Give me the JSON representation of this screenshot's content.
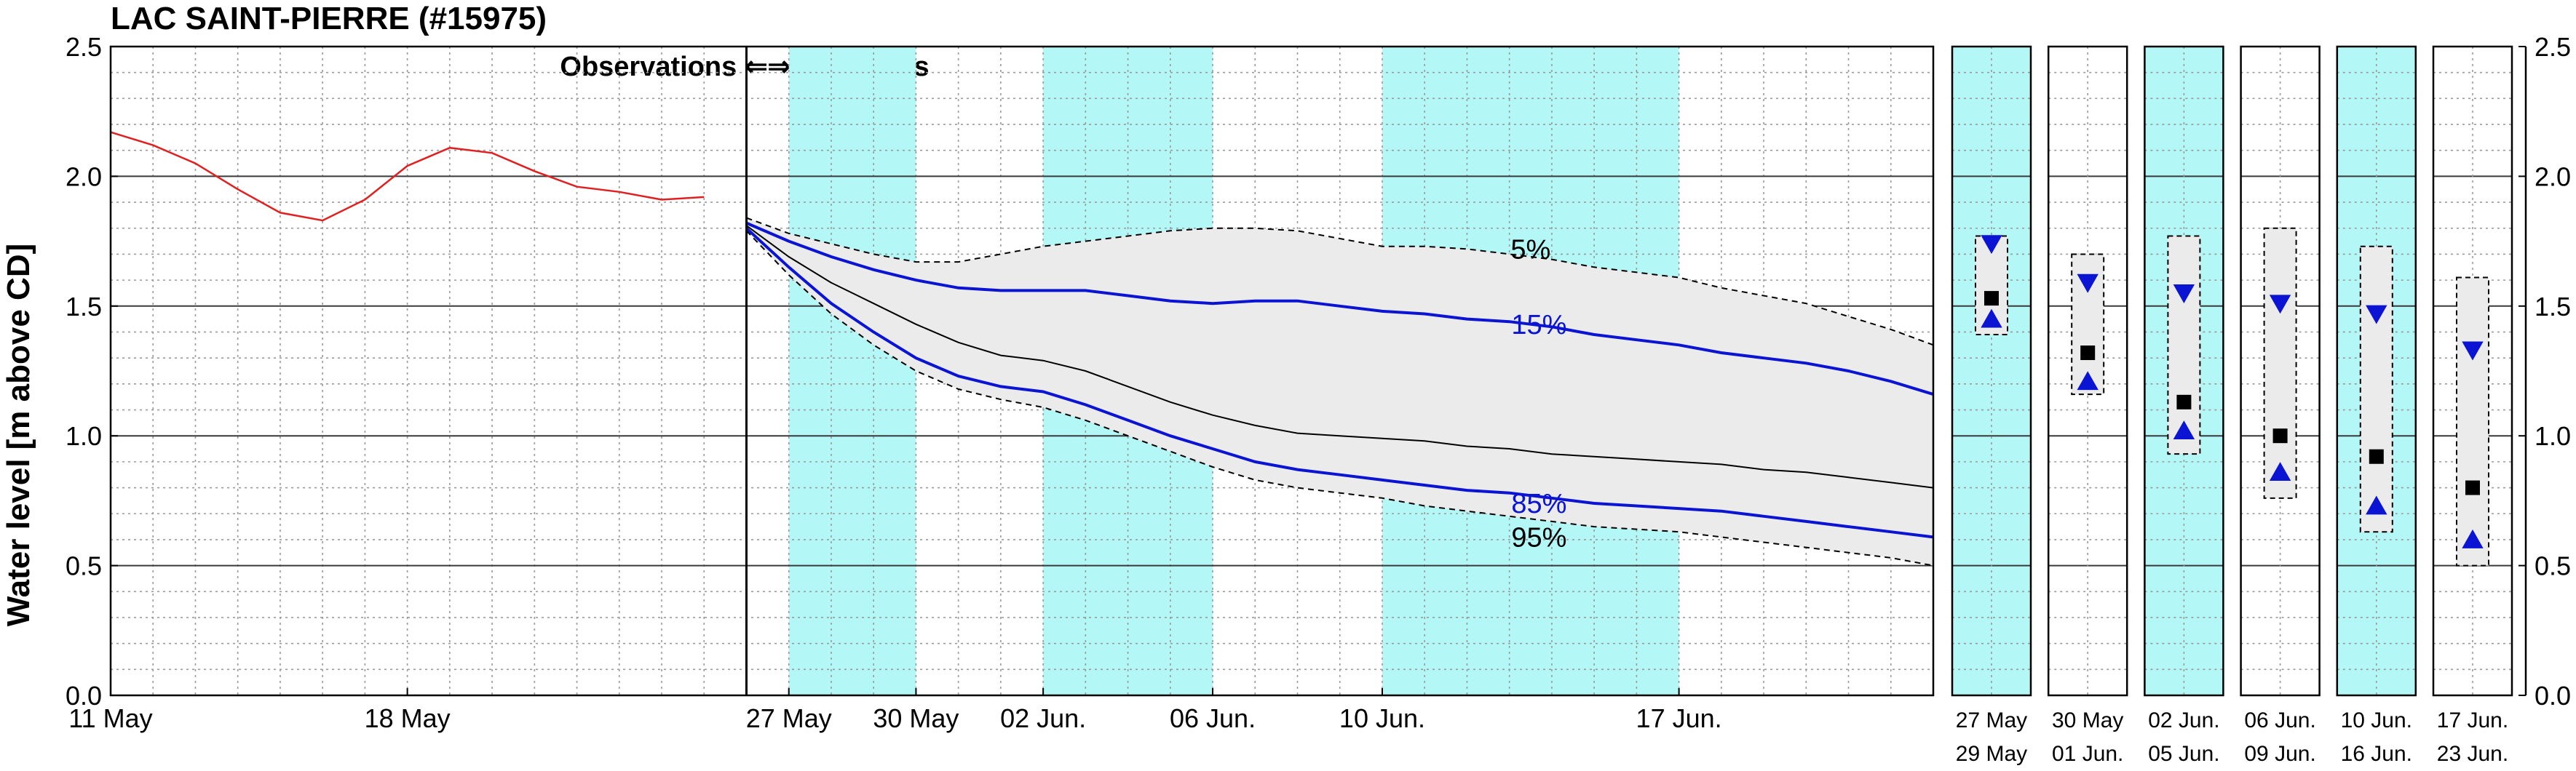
{
  "chart_data": {
    "type": "line",
    "title": "LAC SAINT-PIERRE (#15975)",
    "ylabel": "Water level [m above CD]",
    "ylim": [
      0,
      2.5
    ],
    "yticks": [
      "0.0",
      "0.5",
      "1.0",
      "1.5",
      "2.0",
      "2.5"
    ],
    "grid": true,
    "annotation": "Observations ⇐⇒ Forecasts",
    "x_tick_labels": [
      {
        "day": 0,
        "label": "11 May"
      },
      {
        "day": 7,
        "label": "18 May"
      },
      {
        "day": 16,
        "label": "27 May"
      },
      {
        "day": 19,
        "label": "30 May"
      },
      {
        "day": 22,
        "label": "02 Jun."
      },
      {
        "day": 26,
        "label": "06 Jun."
      },
      {
        "day": 30,
        "label": "10 Jun."
      },
      {
        "day": 37,
        "label": "17 Jun."
      }
    ],
    "x_day_range": [
      0,
      43
    ],
    "forecast_start_day": 15,
    "shaded_periods": [
      [
        16,
        19
      ],
      [
        22,
        26
      ],
      [
        30,
        37
      ]
    ],
    "colors": {
      "observed": "#e02020",
      "band_fill": "#ebebeb",
      "quantile_15_85": "#0a14d2",
      "median": "#000000",
      "shade": "#b3f7f7"
    },
    "observed": {
      "x": [
        0,
        1,
        2,
        3,
        4,
        5,
        6,
        7,
        8,
        9,
        10,
        11,
        12,
        13,
        14
      ],
      "y": [
        2.17,
        2.12,
        2.05,
        1.95,
        1.86,
        1.83,
        1.91,
        2.04,
        2.11,
        2.09,
        2.02,
        1.96,
        1.94,
        1.91,
        1.92
      ]
    },
    "forecast_x": [
      15,
      16,
      17,
      18,
      19,
      20,
      21,
      22,
      23,
      24,
      25,
      26,
      27,
      28,
      29,
      30,
      31,
      32,
      33,
      34,
      35,
      36,
      37,
      38,
      39,
      40,
      41,
      42,
      43
    ],
    "series": [
      {
        "name": "5%",
        "values": [
          1.84,
          1.78,
          1.74,
          1.7,
          1.67,
          1.67,
          1.7,
          1.73,
          1.75,
          1.77,
          1.79,
          1.8,
          1.8,
          1.79,
          1.76,
          1.73,
          1.73,
          1.72,
          1.7,
          1.68,
          1.65,
          1.63,
          1.61,
          1.57,
          1.54,
          1.51,
          1.46,
          1.41,
          1.35
        ]
      },
      {
        "name": "15%",
        "values": [
          1.82,
          1.75,
          1.69,
          1.64,
          1.6,
          1.57,
          1.56,
          1.56,
          1.56,
          1.54,
          1.52,
          1.51,
          1.52,
          1.52,
          1.5,
          1.48,
          1.47,
          1.45,
          1.44,
          1.42,
          1.39,
          1.37,
          1.35,
          1.32,
          1.3,
          1.28,
          1.25,
          1.21,
          1.16
        ]
      },
      {
        "name": "median",
        "values": [
          1.81,
          1.69,
          1.59,
          1.51,
          1.43,
          1.36,
          1.31,
          1.29,
          1.25,
          1.19,
          1.13,
          1.08,
          1.04,
          1.01,
          1.0,
          0.99,
          0.98,
          0.96,
          0.95,
          0.93,
          0.92,
          0.91,
          0.9,
          0.89,
          0.87,
          0.86,
          0.84,
          0.82,
          0.8
        ]
      },
      {
        "name": "85%",
        "values": [
          1.8,
          1.65,
          1.51,
          1.4,
          1.3,
          1.23,
          1.19,
          1.17,
          1.12,
          1.06,
          1.0,
          0.95,
          0.9,
          0.87,
          0.85,
          0.83,
          0.81,
          0.79,
          0.78,
          0.76,
          0.74,
          0.73,
          0.72,
          0.71,
          0.69,
          0.67,
          0.65,
          0.63,
          0.61
        ]
      },
      {
        "name": "95%",
        "values": [
          1.79,
          1.62,
          1.47,
          1.35,
          1.25,
          1.18,
          1.14,
          1.11,
          1.06,
          1.0,
          0.94,
          0.88,
          0.83,
          0.8,
          0.78,
          0.76,
          0.73,
          0.71,
          0.69,
          0.67,
          0.65,
          0.64,
          0.63,
          0.61,
          0.59,
          0.57,
          0.55,
          0.53,
          0.5
        ]
      }
    ],
    "curve_labels": [
      {
        "text": "5%",
        "day": 33.5,
        "y": 1.72,
        "color": "#000000"
      },
      {
        "text": "15%",
        "day": 33.7,
        "y": 1.43,
        "color": "#0a14d2"
      },
      {
        "text": "85%",
        "day": 33.7,
        "y": 0.74,
        "color": "#0a14d2"
      },
      {
        "text": "95%",
        "day": 33.7,
        "y": 0.61,
        "color": "#000000"
      }
    ],
    "weekly_panels": [
      {
        "label_top": "27 May",
        "label_bottom": "29 May",
        "shaded": true,
        "q05": 1.77,
        "q15": 1.74,
        "mean": 1.53,
        "q85": 1.45,
        "q95": 1.39
      },
      {
        "label_top": "30 May",
        "label_bottom": "01 Jun.",
        "shaded": false,
        "q05": 1.7,
        "q15": 1.59,
        "mean": 1.32,
        "q85": 1.21,
        "q95": 1.16
      },
      {
        "label_top": "02 Jun.",
        "label_bottom": "05 Jun.",
        "shaded": true,
        "q05": 1.77,
        "q15": 1.55,
        "mean": 1.13,
        "q85": 1.02,
        "q95": 0.93
      },
      {
        "label_top": "06 Jun.",
        "label_bottom": "09 Jun.",
        "shaded": false,
        "q05": 1.8,
        "q15": 1.51,
        "mean": 1.0,
        "q85": 0.86,
        "q95": 0.76
      },
      {
        "label_top": "10 Jun.",
        "label_bottom": "16 Jun.",
        "shaded": true,
        "q05": 1.73,
        "q15": 1.47,
        "mean": 0.92,
        "q85": 0.73,
        "q95": 0.63
      },
      {
        "label_top": "17 Jun.",
        "label_bottom": "23 Jun.",
        "shaded": false,
        "q05": 1.61,
        "q15": 1.33,
        "mean": 0.8,
        "q85": 0.6,
        "q95": 0.5
      }
    ]
  }
}
